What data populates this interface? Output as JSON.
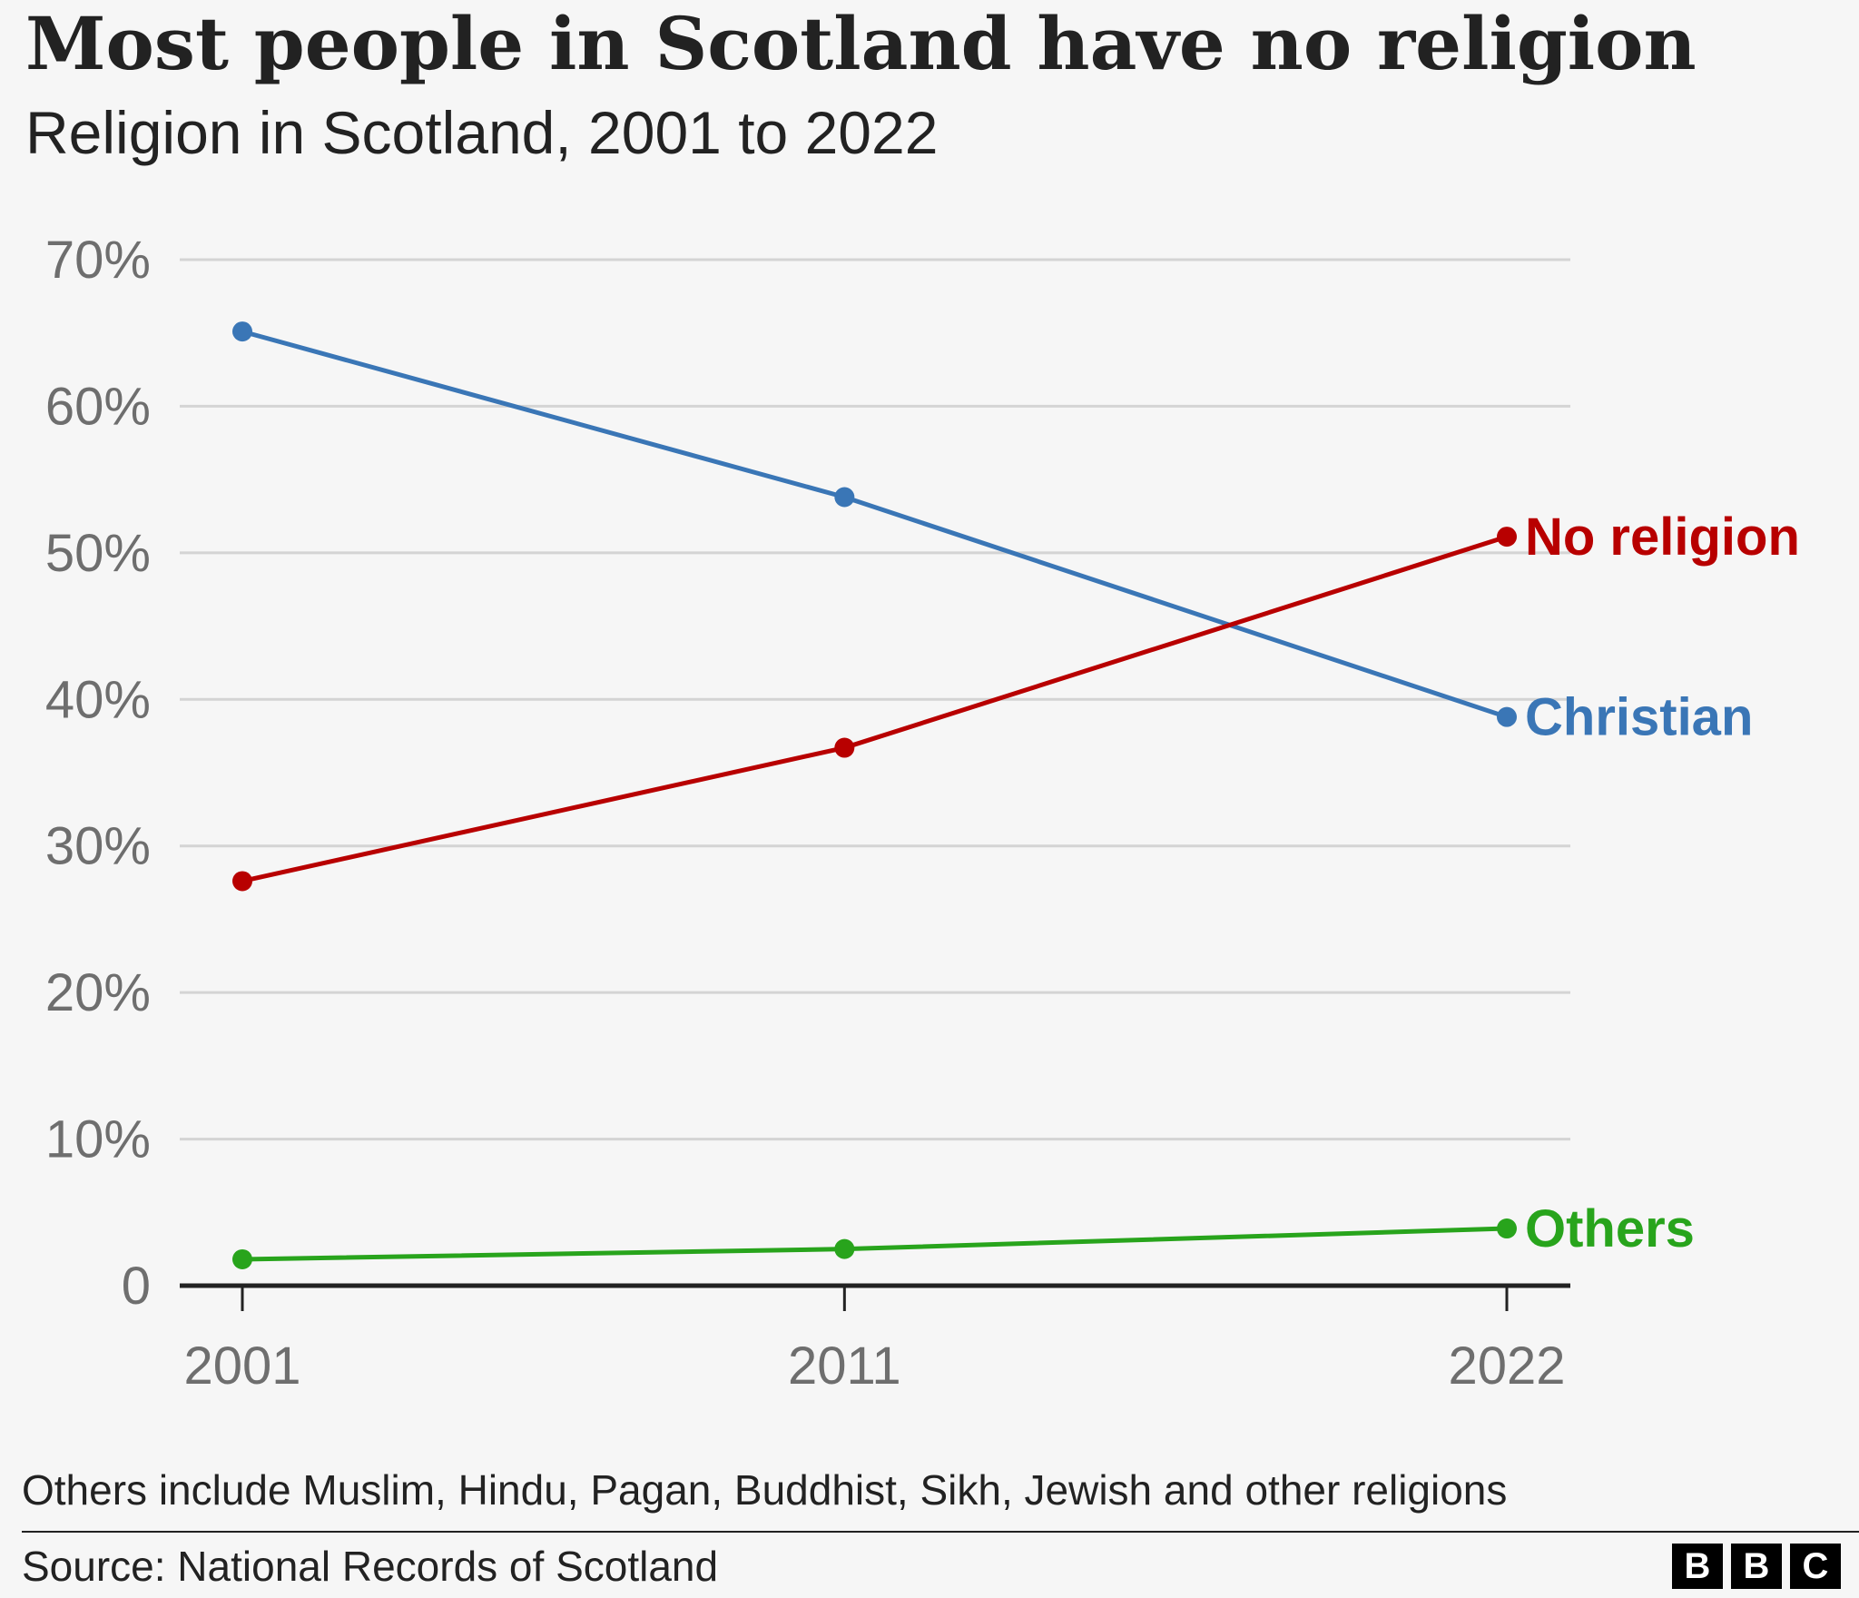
{
  "header": {
    "title": "Most people in Scotland have no religion",
    "subtitle": "Religion in Scotland, 2001 to 2022"
  },
  "chart_data": {
    "type": "line",
    "title": "Most people in Scotland have no religion",
    "subtitle": "Religion in Scotland, 2001 to 2022",
    "x": [
      "2001",
      "2011",
      "2022"
    ],
    "x_numeric": [
      2001,
      2011,
      2022
    ],
    "xlim": [
      2000,
      2023
    ],
    "ylim": [
      0,
      70
    ],
    "y_ticks": [
      0,
      10,
      20,
      30,
      40,
      50,
      60,
      70
    ],
    "y_tick_labels": [
      "0",
      "10%",
      "20%",
      "30%",
      "40%",
      "50%",
      "60%",
      "70%"
    ],
    "grid": true,
    "legend": "direct labels at line ends",
    "series": [
      {
        "name": "Christian",
        "values": [
          65.1,
          53.8,
          38.8
        ],
        "color": "#3a76b6"
      },
      {
        "name": "No religion",
        "values": [
          27.6,
          36.7,
          51.1
        ],
        "color": "#b80000"
      },
      {
        "name": "Others",
        "values": [
          1.8,
          2.5,
          3.9
        ],
        "color": "#28a41c"
      }
    ]
  },
  "footer": {
    "note": "Others include Muslim, Hindu, Pagan, Buddhist, Sikh, Jewish and other religions",
    "source": "Source: National Records of Scotland",
    "logo_letters": [
      "B",
      "B",
      "C"
    ]
  },
  "colors": {
    "background": "#f6f6f6",
    "gridline": "#d4d4d4",
    "axis": "#222222",
    "tick_text": "#6e6e6e"
  }
}
